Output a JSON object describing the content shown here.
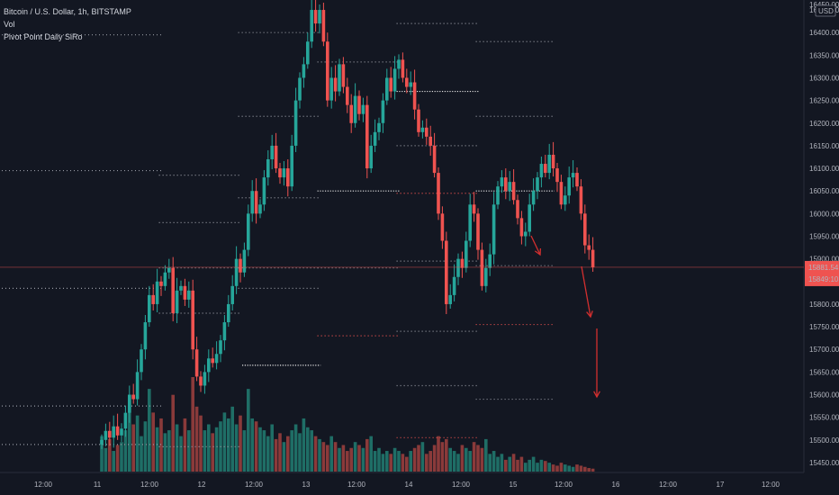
{
  "legend": {
    "symbol_line": "Bitcoin / U.S. Dollar, 1h, BITSTAMP",
    "volume_label": "Vol",
    "indicator_label": "Pivot Point Daily SiRo"
  },
  "axis": {
    "currency": "USD",
    "top_label": "16450.00",
    "last_price_label": "15881.54",
    "countdown_label": "15849:10"
  },
  "colors": {
    "background": "#131722",
    "up": "#26a69a",
    "down": "#ef5350",
    "up_volume": "#1f6e66",
    "down_volume": "#8a3a3a",
    "pivot_gray": "#9598a1",
    "pivot_red": "#ef5350",
    "pivot_white": "#e6e6e6",
    "arrow": "#d32f2f",
    "last_price_line": "#ef5350"
  },
  "chart_data": {
    "type": "candlestick",
    "title": "Bitcoin / U.S. Dollar, 1h, BITSTAMP",
    "ylim": [
      15440,
      16460
    ],
    "y_ticks": [
      "16450.00",
      "16400.00",
      "16350.00",
      "16300.00",
      "16250.00",
      "16200.00",
      "16150.00",
      "16100.00",
      "16050.00",
      "16000.00",
      "15950.00",
      "15900.00",
      "15850.00",
      "15800.00",
      "15750.00",
      "15700.00",
      "15650.00",
      "15600.00",
      "15550.00",
      "15500.00",
      "15450.00"
    ],
    "x_ticks": [
      "12:00",
      "11",
      "12:00",
      "12",
      "12:00",
      "13",
      "12:00",
      "14",
      "12:00",
      "15",
      "12:00",
      "16",
      "12:00",
      "17",
      "12:00"
    ],
    "closes": [
      15500,
      15520,
      15505,
      15530,
      15510,
      15525,
      15560,
      15600,
      15590,
      15650,
      15700,
      15760,
      15820,
      15800,
      15850,
      15840,
      15870,
      15880,
      15780,
      15830,
      15840,
      15810,
      15830,
      15700,
      15640,
      15620,
      15650,
      15680,
      15670,
      15690,
      15720,
      15760,
      15800,
      15840,
      15900,
      15870,
      15920,
      16000,
      16050,
      16000,
      16020,
      16080,
      16120,
      16150,
      16100,
      16080,
      16100,
      16060,
      16150,
      16250,
      16300,
      16330,
      16380,
      16450,
      16420,
      16450,
      16380,
      16250,
      16300,
      16270,
      16330,
      16280,
      16240,
      16200,
      16260,
      16220,
      16240,
      16100,
      16150,
      16180,
      16200,
      16250,
      16300,
      16270,
      16320,
      16340,
      16300,
      16280,
      16290,
      16230,
      16180,
      16190,
      16170,
      16150,
      16090,
      16000,
      15940,
      15800,
      15820,
      15860,
      15900,
      15880,
      15940,
      16020,
      16000,
      15920,
      15840,
      15880,
      15910,
      16020,
      16060,
      16080,
      16050,
      16070,
      16030,
      15990,
      15950,
      15960,
      16020,
      16050,
      16080,
      16110,
      16090,
      16130,
      16100,
      16070,
      16020,
      16040,
      16080,
      16090,
      16060,
      16000,
      15930,
      15920,
      15881.54
    ],
    "volumes": [
      60,
      40,
      55,
      35,
      45,
      50,
      70,
      120,
      80,
      95,
      60,
      85,
      140,
      100,
      75,
      90,
      65,
      70,
      130,
      80,
      60,
      90,
      70,
      160,
      110,
      95,
      70,
      80,
      65,
      75,
      85,
      100,
      90,
      110,
      80,
      95,
      70,
      140,
      90,
      85,
      75,
      70,
      60,
      80,
      55,
      65,
      50,
      60,
      70,
      80,
      65,
      90,
      75,
      70,
      60,
      55,
      50,
      45,
      60,
      50,
      40,
      45,
      35,
      40,
      50,
      45,
      40,
      55,
      60,
      35,
      40,
      30,
      35,
      30,
      40,
      35,
      30,
      25,
      35,
      40,
      45,
      50,
      30,
      35,
      45,
      60,
      50,
      55,
      40,
      35,
      30,
      45,
      40,
      35,
      50,
      45,
      40,
      55,
      30,
      35,
      25,
      30,
      20,
      25,
      30,
      20,
      25,
      15,
      20,
      25,
      15,
      20,
      18,
      15,
      12,
      10,
      15,
      12,
      10,
      8,
      12,
      10,
      8,
      6,
      5
    ],
    "pivot_levels": [
      {
        "color": "gray",
        "from": 0,
        "to": 18,
        "y": 16395
      },
      {
        "color": "gray",
        "from": 0,
        "to": 18,
        "y": 16095
      },
      {
        "color": "gray",
        "from": 0,
        "to": 18,
        "y": 15835
      },
      {
        "color": "gray",
        "from": 0,
        "to": 18,
        "y": 15575
      },
      {
        "color": "gray",
        "from": 0,
        "to": 18,
        "y": 15490
      },
      {
        "color": "gray",
        "from": 19,
        "to": 38,
        "y": 16085
      },
      {
        "color": "gray",
        "from": 19,
        "to": 38,
        "y": 15980
      },
      {
        "color": "gray",
        "from": 19,
        "to": 38,
        "y": 15880
      },
      {
        "color": "gray",
        "from": 19,
        "to": 38,
        "y": 15780
      },
      {
        "color": "gray",
        "from": 19,
        "to": 38,
        "y": 15485
      },
      {
        "color": "gray",
        "from": 39,
        "to": 58,
        "y": 16400
      },
      {
        "color": "gray",
        "from": 39,
        "to": 58,
        "y": 16215
      },
      {
        "color": "gray",
        "from": 39,
        "to": 58,
        "y": 16035
      },
      {
        "color": "gray",
        "from": 39,
        "to": 58,
        "y": 15880
      },
      {
        "color": "gray",
        "from": 39,
        "to": 58,
        "y": 15835
      },
      {
        "color": "white",
        "from": 40,
        "to": 58,
        "y": 15665
      },
      {
        "color": "gray",
        "from": 59,
        "to": 78,
        "y": 16335
      },
      {
        "color": "white",
        "from": 59,
        "to": 78,
        "y": 16050
      },
      {
        "color": "gray",
        "from": 59,
        "to": 78,
        "y": 15880
      },
      {
        "color": "red",
        "from": 59,
        "to": 78,
        "y": 15730
      },
      {
        "color": "gray",
        "from": 79,
        "to": 98,
        "y": 16420
      },
      {
        "color": "white",
        "from": 79,
        "to": 98,
        "y": 16270
      },
      {
        "color": "gray",
        "from": 79,
        "to": 98,
        "y": 16150
      },
      {
        "color": "red",
        "from": 79,
        "to": 98,
        "y": 16045
      },
      {
        "color": "gray",
        "from": 79,
        "to": 98,
        "y": 15895
      },
      {
        "color": "gray",
        "from": 79,
        "to": 98,
        "y": 15740
      },
      {
        "color": "gray",
        "from": 79,
        "to": 98,
        "y": 15620
      },
      {
        "color": "red",
        "from": 79,
        "to": 98,
        "y": 15505
      },
      {
        "color": "gray",
        "from": 99,
        "to": 117,
        "y": 16380
      },
      {
        "color": "gray",
        "from": 99,
        "to": 117,
        "y": 16215
      },
      {
        "color": "white",
        "from": 99,
        "to": 117,
        "y": 16050
      },
      {
        "color": "gray",
        "from": 99,
        "to": 117,
        "y": 15885
      },
      {
        "color": "red",
        "from": 99,
        "to": 117,
        "y": 15755
      },
      {
        "color": "gray",
        "from": 99,
        "to": 117,
        "y": 15590
      }
    ]
  }
}
